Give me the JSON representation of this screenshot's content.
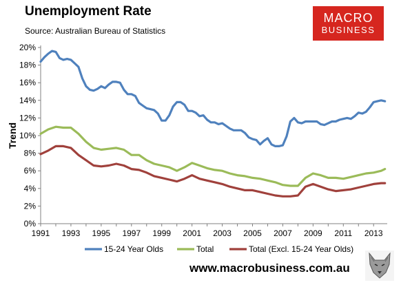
{
  "header": {
    "title": "Unemployment Rate",
    "source": "Source: Australian Bureau of Statistics"
  },
  "logo": {
    "line1": "MACRO",
    "line2": "BUSINESS"
  },
  "footer": {
    "url": "www.macrobusiness.com.au",
    "mascot_icon": "wolf-head-icon"
  },
  "colors": {
    "youth": "#4f81bd",
    "total": "#9bbb59",
    "excl": "#a0413c",
    "logo_bg": "#d6261f"
  },
  "chart_data": {
    "type": "line",
    "title": "Unemployment Rate",
    "ylabel": "Trend",
    "xlabel": "",
    "ylim": [
      0,
      20
    ],
    "xlim": [
      1991,
      2013.9
    ],
    "y_ticks": [
      "0%",
      "2%",
      "4%",
      "6%",
      "8%",
      "10%",
      "12%",
      "14%",
      "16%",
      "18%",
      "20%"
    ],
    "x_ticks": [
      "1991",
      "1993",
      "1995",
      "1997",
      "1999",
      "2001",
      "2003",
      "2005",
      "2007",
      "2009",
      "2011",
      "2013"
    ],
    "grid": false,
    "legend": "bottom",
    "series": [
      {
        "name": "15-24 Year Olds",
        "color": "#4f81bd",
        "x": [
          1991.0,
          1991.25,
          1991.5,
          1991.75,
          1992.0,
          1992.25,
          1992.5,
          1992.75,
          1993.0,
          1993.25,
          1993.5,
          1993.75,
          1994.0,
          1994.25,
          1994.5,
          1994.75,
          1995.0,
          1995.25,
          1995.5,
          1995.75,
          1996.0,
          1996.25,
          1996.5,
          1996.75,
          1997.0,
          1997.25,
          1997.5,
          1997.75,
          1998.0,
          1998.25,
          1998.5,
          1998.75,
          1999.0,
          1999.25,
          1999.5,
          1999.75,
          2000.0,
          2000.25,
          2000.5,
          2000.75,
          2001.0,
          2001.25,
          2001.5,
          2001.75,
          2002.0,
          2002.25,
          2002.5,
          2002.75,
          2003.0,
          2003.25,
          2003.5,
          2003.75,
          2004.0,
          2004.25,
          2004.5,
          2004.75,
          2005.0,
          2005.25,
          2005.5,
          2005.75,
          2006.0,
          2006.25,
          2006.5,
          2006.75,
          2007.0,
          2007.25,
          2007.5,
          2007.75,
          2008.0,
          2008.25,
          2008.5,
          2008.75,
          2009.0,
          2009.25,
          2009.5,
          2009.75,
          2010.0,
          2010.25,
          2010.5,
          2010.75,
          2011.0,
          2011.25,
          2011.5,
          2011.75,
          2012.0,
          2012.25,
          2012.5,
          2012.75,
          2013.0,
          2013.25,
          2013.5,
          2013.75
        ],
        "values": [
          18.4,
          18.9,
          19.3,
          19.6,
          19.5,
          18.8,
          18.6,
          18.7,
          18.6,
          18.2,
          17.8,
          16.5,
          15.6,
          15.2,
          15.1,
          15.3,
          15.6,
          15.4,
          15.8,
          16.1,
          16.1,
          16.0,
          15.2,
          14.7,
          14.7,
          14.5,
          13.7,
          13.4,
          13.1,
          13.0,
          12.9,
          12.5,
          11.7,
          11.7,
          12.3,
          13.3,
          13.8,
          13.8,
          13.5,
          12.8,
          12.8,
          12.6,
          12.2,
          12.3,
          11.8,
          11.5,
          11.5,
          11.3,
          11.4,
          11.1,
          10.8,
          10.6,
          10.6,
          10.6,
          10.3,
          9.8,
          9.6,
          9.5,
          9.0,
          9.4,
          9.7,
          9.0,
          8.8,
          8.8,
          8.9,
          9.9,
          11.6,
          12.0,
          11.5,
          11.4,
          11.6,
          11.6,
          11.6,
          11.6,
          11.3,
          11.2,
          11.4,
          11.6,
          11.6,
          11.8,
          11.9,
          12.0,
          11.9,
          12.2,
          12.6,
          12.5,
          12.7,
          13.2,
          13.8,
          13.9,
          14.0,
          13.9
        ],
        "x_note": ""
      },
      {
        "name": "Total",
        "color": "#9bbb59",
        "x": [
          1991.0,
          1991.5,
          1992.0,
          1992.5,
          1993.0,
          1993.5,
          1994.0,
          1994.5,
          1995.0,
          1995.5,
          1996.0,
          1996.5,
          1997.0,
          1997.5,
          1998.0,
          1998.5,
          1999.0,
          1999.5,
          2000.0,
          2000.5,
          2001.0,
          2001.5,
          2002.0,
          2002.5,
          2003.0,
          2003.5,
          2004.0,
          2004.5,
          2005.0,
          2005.5,
          2006.0,
          2006.5,
          2007.0,
          2007.5,
          2008.0,
          2008.5,
          2009.0,
          2009.5,
          2010.0,
          2010.5,
          2011.0,
          2011.5,
          2012.0,
          2012.5,
          2013.0,
          2013.5,
          2013.75
        ],
        "values": [
          10.2,
          10.7,
          11.0,
          10.9,
          10.9,
          10.2,
          9.3,
          8.6,
          8.4,
          8.5,
          8.6,
          8.4,
          7.8,
          7.8,
          7.2,
          6.8,
          6.6,
          6.4,
          6.0,
          6.4,
          6.9,
          6.6,
          6.3,
          6.1,
          6.0,
          5.7,
          5.5,
          5.4,
          5.2,
          5.1,
          4.9,
          4.7,
          4.4,
          4.3,
          4.3,
          5.2,
          5.7,
          5.5,
          5.2,
          5.2,
          5.1,
          5.3,
          5.5,
          5.7,
          5.8,
          6.0,
          6.2
        ]
      },
      {
        "name": "Total (Excl. 15-24 Year Olds)",
        "color": "#a0413c",
        "x": [
          1991.0,
          1991.5,
          1992.0,
          1992.5,
          1993.0,
          1993.5,
          1994.0,
          1994.5,
          1995.0,
          1995.5,
          1996.0,
          1996.5,
          1997.0,
          1997.5,
          1998.0,
          1998.5,
          1999.0,
          1999.5,
          2000.0,
          2000.5,
          2001.0,
          2001.5,
          2002.0,
          2002.5,
          2003.0,
          2003.5,
          2004.0,
          2004.5,
          2005.0,
          2005.5,
          2006.0,
          2006.5,
          2007.0,
          2007.5,
          2008.0,
          2008.5,
          2009.0,
          2009.5,
          2010.0,
          2010.5,
          2011.0,
          2011.5,
          2012.0,
          2012.5,
          2013.0,
          2013.5,
          2013.75
        ],
        "values": [
          7.9,
          8.3,
          8.8,
          8.8,
          8.6,
          7.8,
          7.2,
          6.6,
          6.5,
          6.6,
          6.8,
          6.6,
          6.2,
          6.1,
          5.8,
          5.4,
          5.2,
          5.0,
          4.8,
          5.1,
          5.5,
          5.1,
          4.9,
          4.7,
          4.5,
          4.2,
          4.0,
          3.8,
          3.8,
          3.6,
          3.4,
          3.2,
          3.1,
          3.1,
          3.2,
          4.2,
          4.5,
          4.2,
          3.9,
          3.7,
          3.8,
          3.9,
          4.1,
          4.3,
          4.5,
          4.6,
          4.6
        ]
      }
    ]
  }
}
